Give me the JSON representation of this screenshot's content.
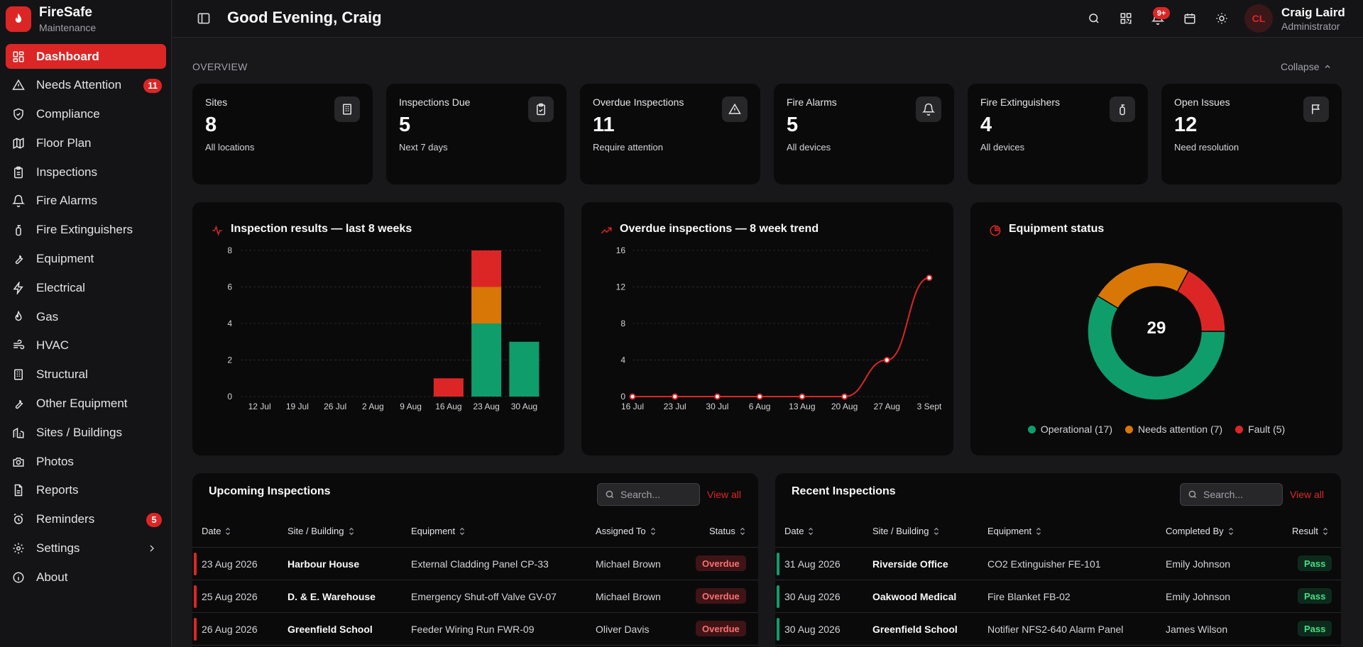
{
  "brand": {
    "name": "FireSafe",
    "subtitle": "Maintenance"
  },
  "sidebar": {
    "items": [
      {
        "label": "Dashboard",
        "icon": "dashboard-icon",
        "active": true
      },
      {
        "label": "Needs Attention",
        "icon": "alert-icon",
        "badge": "11"
      },
      {
        "label": "Compliance",
        "icon": "shield-check-icon"
      },
      {
        "label": "Floor Plan",
        "icon": "map-icon"
      },
      {
        "label": "Inspections",
        "icon": "clipboard-icon"
      },
      {
        "label": "Fire Alarms",
        "icon": "bell-icon"
      },
      {
        "label": "Fire Extinguishers",
        "icon": "extinguisher-icon"
      },
      {
        "label": "Equipment",
        "icon": "wrench-icon"
      },
      {
        "label": "Electrical",
        "icon": "bolt-icon"
      },
      {
        "label": "Gas",
        "icon": "flame-icon"
      },
      {
        "label": "HVAC",
        "icon": "wind-icon"
      },
      {
        "label": "Structural",
        "icon": "building-icon"
      },
      {
        "label": "Other Equipment",
        "icon": "wrench-icon"
      },
      {
        "label": "Sites / Buildings",
        "icon": "buildings-icon"
      },
      {
        "label": "Photos",
        "icon": "camera-icon"
      },
      {
        "label": "Reports",
        "icon": "file-icon"
      },
      {
        "label": "Reminders",
        "icon": "alarm-clock-icon",
        "badge": "5"
      },
      {
        "label": "Settings",
        "icon": "gear-icon",
        "chevron": true
      },
      {
        "label": "About",
        "icon": "info-icon"
      }
    ]
  },
  "header": {
    "greeting": "Good Evening, Craig",
    "notif_badge": "9+",
    "user": {
      "initials": "CL",
      "name": "Craig Laird",
      "role": "Administrator"
    }
  },
  "overview": {
    "label": "OVERVIEW",
    "collapse_label": "Collapse",
    "stats": [
      {
        "title": "Sites",
        "value": "8",
        "sub": "All locations",
        "icon": "building-icon"
      },
      {
        "title": "Inspections Due",
        "value": "5",
        "sub": "Next 7 days",
        "icon": "clipboard-check-icon"
      },
      {
        "title": "Overdue Inspections",
        "value": "11",
        "sub": "Require attention",
        "icon": "alert-icon"
      },
      {
        "title": "Fire Alarms",
        "value": "5",
        "sub": "All devices",
        "icon": "bell-icon"
      },
      {
        "title": "Fire Extinguishers",
        "value": "4",
        "sub": "All devices",
        "icon": "extinguisher-icon"
      },
      {
        "title": "Open Issues",
        "value": "12",
        "sub": "Need resolution",
        "icon": "flag-icon"
      }
    ]
  },
  "charts": {
    "results_title": "Inspection results — last 8 weeks",
    "trend_title": "Overdue inspections — 8 week trend",
    "equipment_title": "Equipment status"
  },
  "chart_data": [
    {
      "type": "bar",
      "title": "Inspection results — last 8 weeks",
      "categories": [
        "12 Jul",
        "19 Jul",
        "26 Jul",
        "2 Aug",
        "9 Aug",
        "16 Aug",
        "23 Aug",
        "30 Aug"
      ],
      "stacked": true,
      "series": [
        {
          "values": [
            0,
            0,
            0,
            0,
            0,
            0,
            4,
            3
          ],
          "color": "#0f9d6c"
        },
        {
          "values": [
            0,
            0,
            0,
            0,
            0,
            0,
            2,
            0
          ],
          "color": "#d97706"
        },
        {
          "values": [
            0,
            0,
            0,
            0,
            0,
            1,
            2,
            0
          ],
          "color": "#dc2626"
        }
      ],
      "yticks": [
        0,
        2,
        4,
        6,
        8
      ],
      "ylim": [
        0,
        8
      ]
    },
    {
      "type": "line",
      "title": "Overdue inspections — 8 week trend",
      "x": [
        "16 Jul",
        "23 Jul",
        "30 Jul",
        "6 Aug",
        "13 Aug",
        "20 Aug",
        "27 Aug",
        "3 Sept"
      ],
      "values": [
        0,
        0,
        0,
        0,
        0,
        0,
        4,
        13
      ],
      "yticks": [
        0,
        4,
        8,
        12,
        16
      ],
      "ylim": [
        0,
        16
      ],
      "color": "#dc2626"
    },
    {
      "type": "pie",
      "title": "Equipment status",
      "center_label": "29",
      "slices": [
        {
          "label": "Operational (17)",
          "value": 17,
          "color": "#0f9d6c"
        },
        {
          "label": "Needs attention (7)",
          "value": 7,
          "color": "#d97706"
        },
        {
          "label": "Fault (5)",
          "value": 5,
          "color": "#dc2626"
        }
      ],
      "legend": "bottom"
    }
  ],
  "upcoming": {
    "title": "Upcoming Inspections",
    "search_placeholder": "Search...",
    "view_all": "View all",
    "columns": [
      "Date",
      "Site / Building",
      "Equipment",
      "Assigned To",
      "Status"
    ],
    "rows": [
      {
        "date": "23 Aug 2026",
        "site": "Harbour House",
        "equipment": "External Cladding Panel CP-33",
        "assigned": "Michael Brown",
        "status": "Overdue"
      },
      {
        "date": "25 Aug 2026",
        "site": "D. & E. Warehouse",
        "equipment": "Emergency Shut-off Valve GV-07",
        "assigned": "Michael Brown",
        "status": "Overdue"
      },
      {
        "date": "26 Aug 2026",
        "site": "Greenfield School",
        "equipment": "Feeder Wiring Run FWR-09",
        "assigned": "Oliver Davis",
        "status": "Overdue"
      }
    ]
  },
  "recent": {
    "title": "Recent Inspections",
    "search_placeholder": "Search...",
    "view_all": "View all",
    "columns": [
      "Date",
      "Site / Building",
      "Equipment",
      "Completed By",
      "Result"
    ],
    "rows": [
      {
        "date": "31 Aug 2026",
        "site": "Riverside Office",
        "equipment": "CO2 Extinguisher FE-101",
        "completed": "Emily Johnson",
        "result": "Pass"
      },
      {
        "date": "30 Aug 2026",
        "site": "Oakwood Medical",
        "equipment": "Fire Blanket FB-02",
        "completed": "Emily Johnson",
        "result": "Pass"
      },
      {
        "date": "30 Aug 2026",
        "site": "Greenfield School",
        "equipment": "Notifier NFS2-640 Alarm Panel",
        "completed": "James Wilson",
        "result": "Pass"
      }
    ]
  },
  "colors": {
    "accent": "#dc2626",
    "operational": "#0f9d6c",
    "attention": "#d97706",
    "fault": "#dc2626"
  }
}
